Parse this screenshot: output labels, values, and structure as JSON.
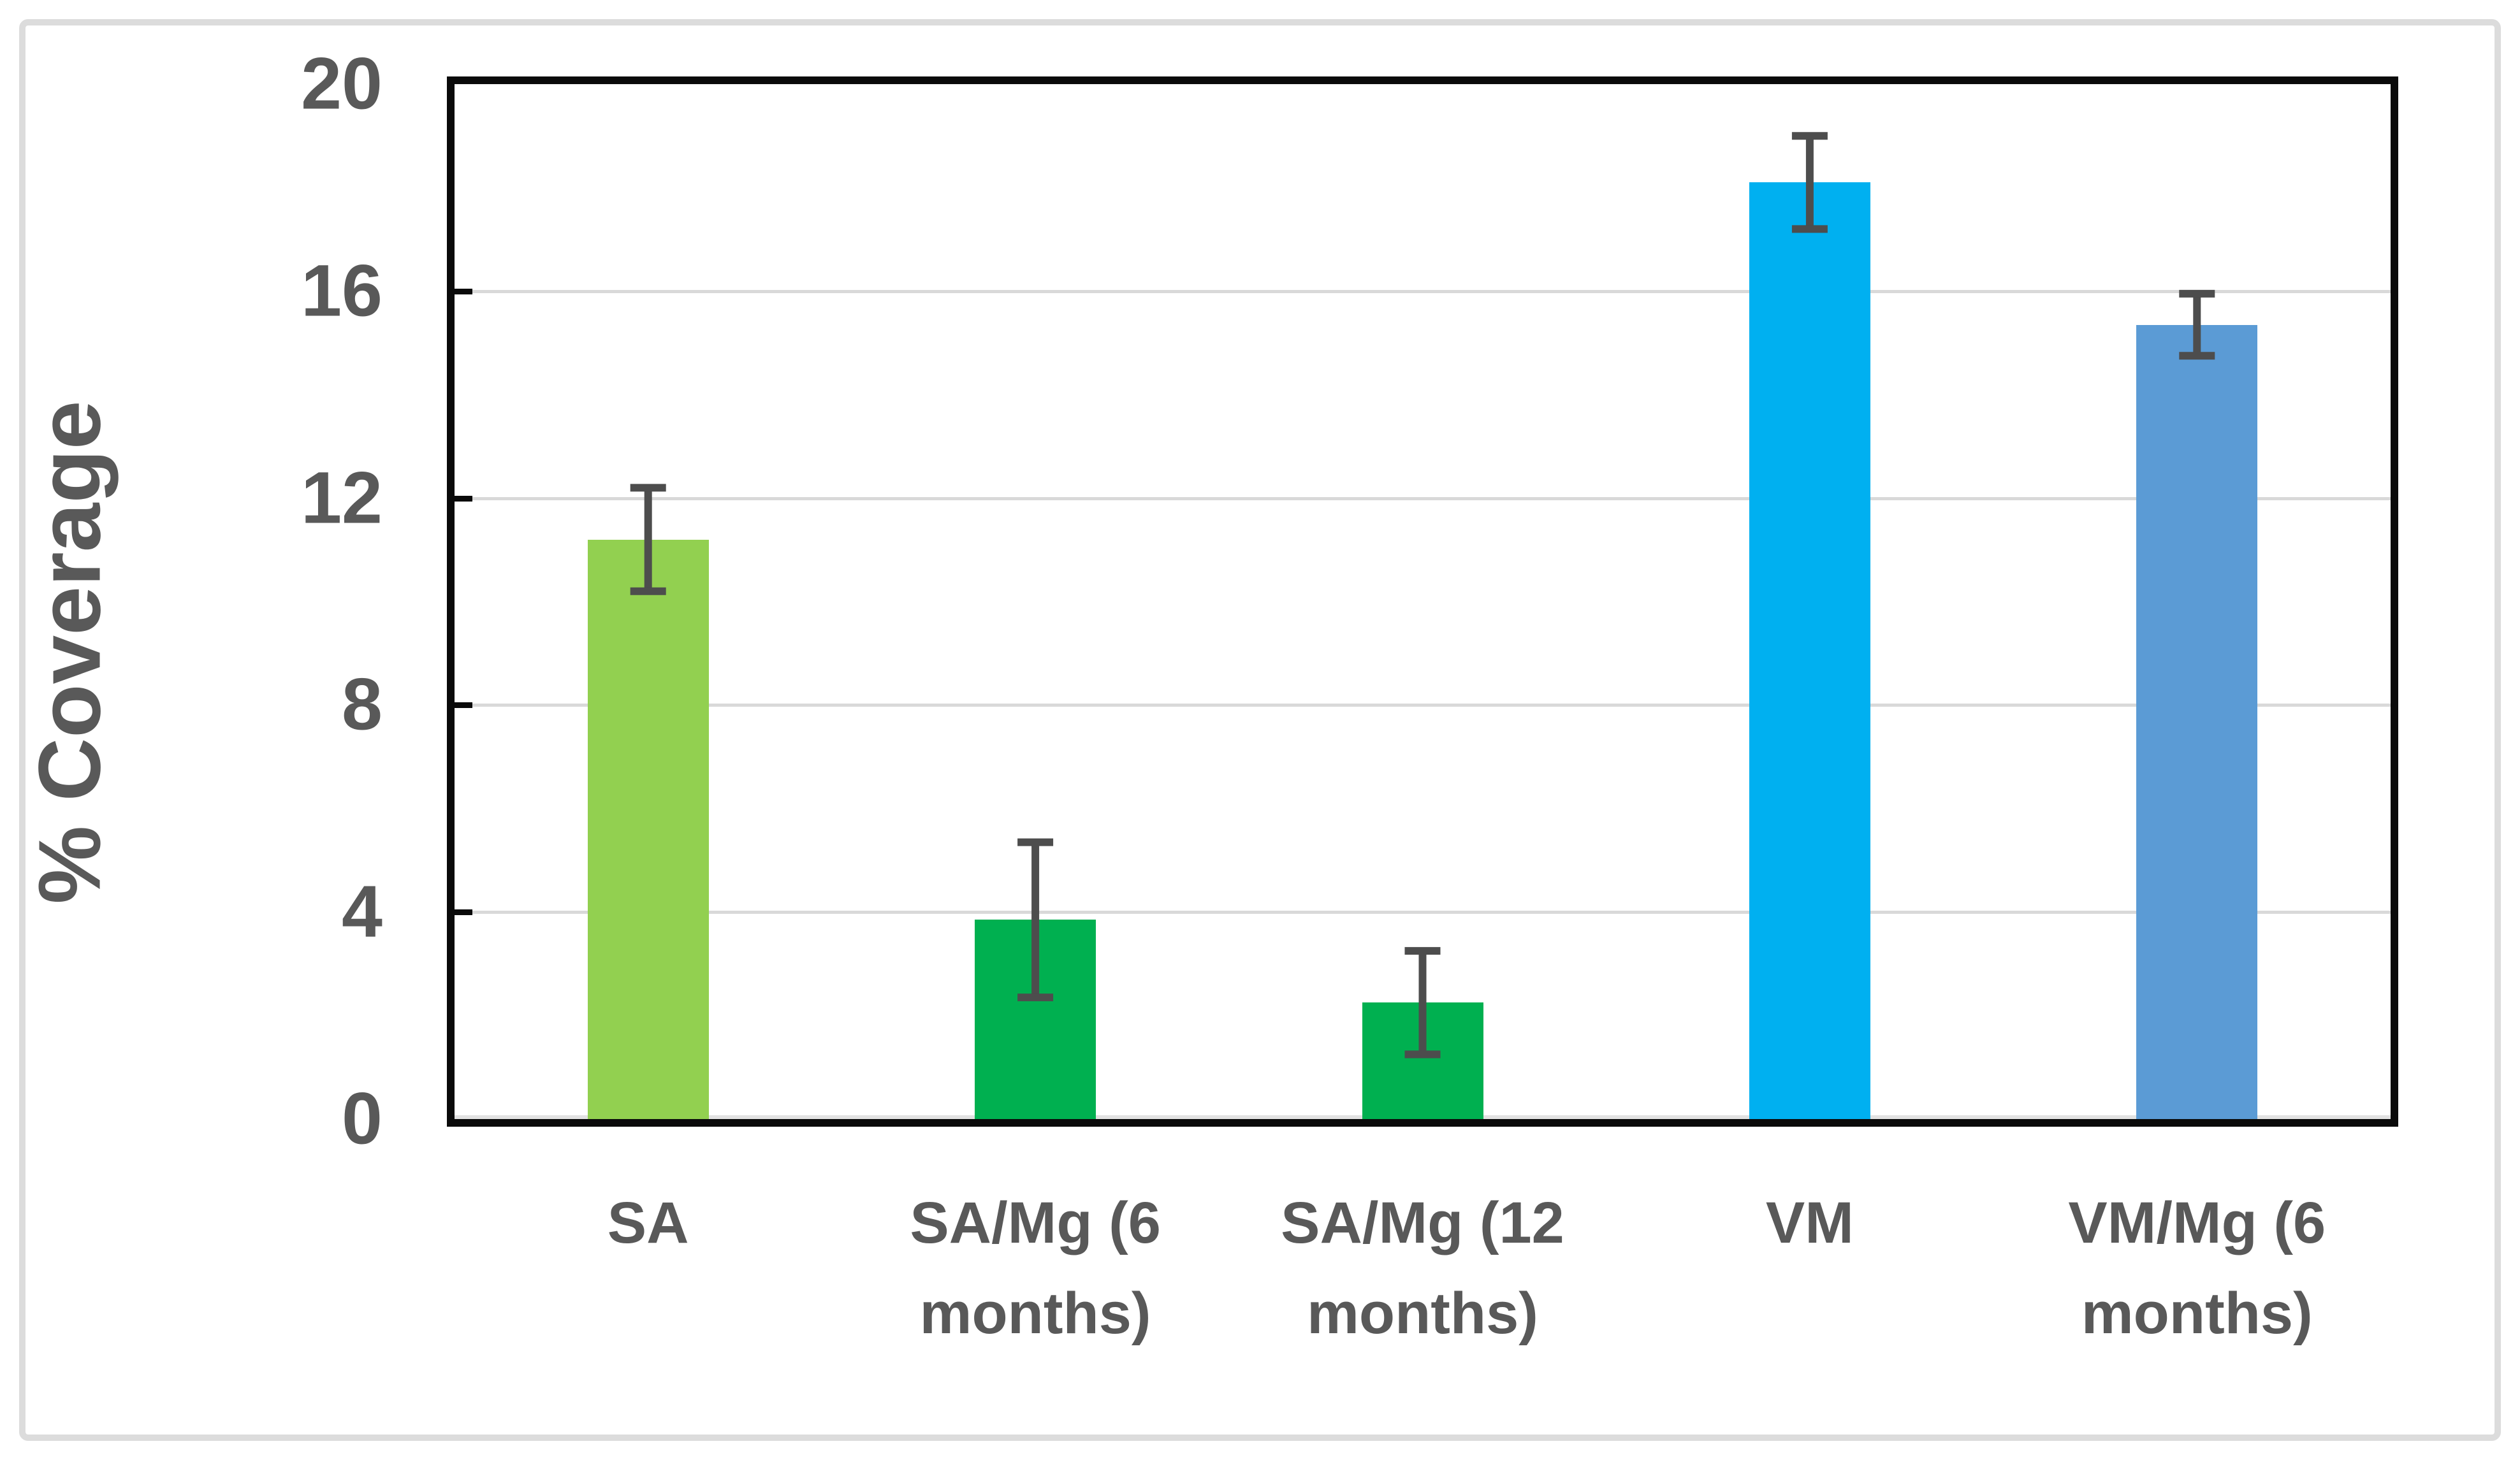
{
  "figure": {
    "background_color": "#FFFFFF",
    "outer_border_color": "#DCDCDC"
  },
  "chart_data": {
    "type": "bar",
    "title": "",
    "xlabel": "",
    "ylabel": "% Coverage",
    "ylim": [
      0,
      20
    ],
    "yticks": [
      0,
      4,
      8,
      12,
      16,
      20
    ],
    "gridlines": [
      4,
      8,
      12,
      16
    ],
    "grid_on": true,
    "legend_position": "none",
    "categories": [
      "SA",
      "SA/Mg (6\nmonths)",
      "SA/Mg (12\nmonths)",
      "VM",
      "VM/Mg (6\nmonths)"
    ],
    "values": [
      11.2,
      3.85,
      2.25,
      18.1,
      15.35
    ],
    "errors": [
      1.0,
      1.5,
      1.0,
      0.9,
      0.6
    ],
    "bar_colors": [
      "#92D050",
      "#00B050",
      "#00B050",
      "#00B0F0",
      "#5B9BD5"
    ],
    "error_bar_color": "#4D4D4D",
    "gridline_color": "#D9D9D9",
    "axis_color": "#0A0A0A",
    "tick_label_color": "#595959",
    "axis_title_color": "#595959",
    "x_label_color": "#595959"
  }
}
